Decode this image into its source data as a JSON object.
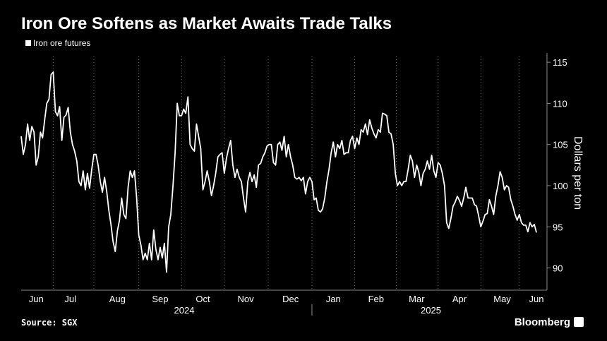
{
  "chart_data": {
    "type": "line",
    "title": "Iron Ore Softens as Market Awaits Trade Talks",
    "y_label": "Dollars per ton",
    "source": "Source: SGX",
    "brand": "Bloomberg",
    "year_labels": [
      "2024",
      "2025"
    ],
    "ylim": [
      87.3,
      115.7
    ],
    "yticks": [
      90,
      95,
      100,
      105,
      110,
      115
    ],
    "categories": [
      null,
      null,
      null,
      null,
      null,
      null,
      null,
      "Jun",
      null,
      null,
      null,
      null,
      null,
      null,
      null,
      null,
      null,
      null,
      null,
      null,
      null,
      null,
      null,
      "Jul",
      null,
      null,
      null,
      null,
      null,
      null,
      null,
      null,
      null,
      null,
      null,
      null,
      null,
      null,
      null,
      null,
      null,
      null,
      null,
      null,
      null,
      "Aug",
      null,
      null,
      null,
      null,
      null,
      null,
      null,
      null,
      null,
      null,
      null,
      null,
      null,
      null,
      null,
      null,
      null,
      null,
      null,
      "Sep",
      null,
      null,
      null,
      null,
      null,
      null,
      null,
      null,
      null,
      null,
      null,
      null,
      null,
      null,
      null,
      null,
      null,
      null,
      null,
      "Oct",
      null,
      null,
      null,
      null,
      null,
      null,
      null,
      null,
      null,
      null,
      null,
      null,
      null,
      null,
      null,
      null,
      null,
      null,
      null,
      "Nov",
      null,
      null,
      null,
      null,
      null,
      null,
      null,
      null,
      null,
      null,
      null,
      null,
      null,
      null,
      null,
      null,
      null,
      null,
      null,
      null,
      "Dec",
      null,
      null,
      null,
      null,
      null,
      null,
      null,
      null,
      null,
      null,
      null,
      null,
      null,
      null,
      null,
      null,
      null,
      null,
      null,
      "Jan",
      null,
      null,
      null,
      null,
      null,
      null,
      null,
      null,
      null,
      null,
      null,
      null,
      null,
      null,
      null,
      null,
      null,
      null,
      null,
      "Feb",
      null,
      null,
      null,
      null,
      null,
      null,
      null,
      null,
      null,
      null,
      null,
      null,
      null,
      null,
      null,
      null,
      null,
      null,
      "Mar",
      null,
      null,
      null,
      null,
      null,
      null,
      null,
      null,
      null,
      null,
      null,
      null,
      null,
      null,
      null,
      null,
      null,
      null,
      null,
      "Apr",
      null,
      null,
      null,
      null,
      null,
      null,
      null,
      null,
      null,
      null,
      null,
      null,
      null,
      null,
      null,
      null,
      null,
      null,
      null,
      "May",
      null,
      null,
      null,
      null,
      null,
      null,
      null,
      null,
      null,
      null,
      null,
      null,
      null,
      null,
      null,
      "Jun"
    ],
    "series": [
      {
        "name": "Iron ore futures",
        "color": "#ffffff",
        "values": [
          106,
          103.8,
          105,
          107.5,
          105.5,
          107.2,
          106.5,
          102.5,
          103.5,
          106.5,
          105.8,
          108,
          110,
          110.5,
          113.5,
          113.8,
          109,
          108.5,
          109.6,
          105.5,
          108.3,
          108.6,
          109.5,
          106.5,
          105,
          104.2,
          103,
          100.5,
          100,
          101.8,
          99.5,
          101.5,
          99.7,
          102,
          103.8,
          103.8,
          102.5,
          100.5,
          99.2,
          101,
          99.3,
          97,
          95.3,
          93.2,
          92,
          94.5,
          95.8,
          98.5,
          96.5,
          96,
          99.8,
          101.8,
          101,
          101.8,
          98.5,
          94,
          92.8,
          91,
          91.8,
          91,
          93,
          91,
          94.6,
          92.3,
          91,
          92.5,
          91.2,
          93,
          89.5,
          95,
          96.5,
          100,
          104,
          110,
          108.5,
          108.5,
          109.3,
          108.8,
          110.8,
          105,
          104.5,
          104.2,
          107.5,
          106,
          104.5,
          99.5,
          100.5,
          101.8,
          100.5,
          98.8,
          100,
          101.5,
          103.5,
          103.8,
          104,
          101.5,
          103.3,
          104.5,
          105.5,
          102.5,
          101,
          102,
          101,
          100.5,
          98.5,
          96.8,
          100.5,
          101.6,
          100.5,
          101.3,
          99.8,
          102.5,
          102.7,
          103.5,
          104,
          104.8,
          105,
          105,
          102.8,
          102.5,
          105,
          105.3,
          104.3,
          106,
          103.5,
          105,
          103.5,
          102.5,
          101,
          100.8,
          101,
          100.6,
          101,
          99,
          100.5,
          101,
          100.5,
          98.3,
          98.5,
          97,
          96.8,
          97.2,
          98.5,
          100.5,
          102,
          104,
          105.3,
          103.5,
          105,
          104.5,
          105.5,
          103.8,
          104,
          104,
          105.5,
          106,
          104.5,
          105.8,
          105,
          106.8,
          106.5,
          107.5,
          106.2,
          108,
          107,
          106.3,
          105.8,
          106.8,
          106.5,
          108.8,
          108.7,
          108.5,
          106.5,
          106.3,
          105,
          101.5,
          100,
          100.5,
          100,
          100.5,
          100.5,
          102,
          103.7,
          103,
          101,
          102.5,
          101.6,
          100,
          101.5,
          102,
          103,
          102,
          103.7,
          101.8,
          101,
          102.8,
          102.5,
          101.5,
          100,
          95.5,
          94.8,
          96,
          97.5,
          98,
          98.7,
          98.2,
          97.5,
          98.5,
          99.8,
          98.5,
          98.5,
          98.5,
          97.7,
          97.5,
          96.3,
          95,
          95.7,
          96.5,
          96.6,
          98.3,
          97.5,
          96.5,
          98.7,
          100,
          101.7,
          101,
          99.5,
          100,
          99.8,
          98.3,
          97.5,
          96.5,
          95.8,
          96.5,
          95.5,
          95.2,
          95.2,
          94.4,
          95.5,
          95,
          95.3,
          94.3
        ]
      }
    ],
    "grid": true
  }
}
